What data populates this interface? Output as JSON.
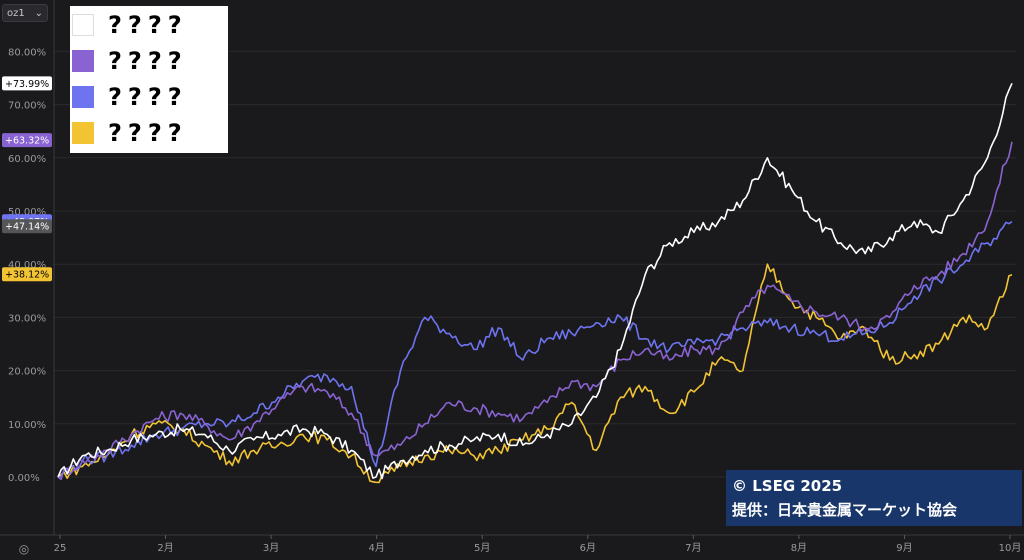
{
  "selector": {
    "value": "oz1",
    "chevron_icon": "chevron-down-icon"
  },
  "settings_icon": "gear-icon",
  "legend": {
    "items": [
      {
        "label": "????",
        "color": "#ffffff"
      },
      {
        "label": "????",
        "color": "#8a63d2"
      },
      {
        "label": "????",
        "color": "#6e73f0"
      },
      {
        "label": "????",
        "color": "#f2c434"
      }
    ]
  },
  "credit": {
    "line1": "© LSEG 2025",
    "line2": "提供：日本貴金属マーケット協会"
  },
  "chart_data": {
    "type": "line",
    "title": "",
    "xlabel": "",
    "ylabel": "",
    "ylim": [
      -10,
      90
    ],
    "y_ticks": [
      0,
      10,
      20,
      30,
      40,
      50,
      60,
      70,
      80
    ],
    "y_tick_labels": [
      "0.00%",
      "10.00%",
      "20.00%",
      "30.00%",
      "40.00%",
      "50.00%",
      "60.00%",
      "70.00%",
      "80.00%"
    ],
    "x_ticks": [
      "25",
      "2月",
      "3月",
      "4月",
      "5月",
      "6月",
      "7月",
      "8月",
      "9月",
      "10月"
    ],
    "grid": true,
    "legend_position": "top-left",
    "x_weeks": [
      0,
      1,
      2,
      3,
      4,
      5,
      6,
      7,
      8,
      9,
      10,
      11,
      12,
      13,
      14,
      15,
      16,
      17,
      18,
      19,
      20,
      21,
      22,
      23,
      24,
      25,
      26,
      27,
      28,
      29,
      30,
      31,
      32,
      33,
      34,
      35,
      36,
      37,
      38,
      39
    ],
    "last_value_tags": [
      {
        "label": "+73.99%",
        "value": 73.99,
        "color": "#ffffff",
        "text_color": "#000000"
      },
      {
        "label": "+63.32%",
        "value": 63.32,
        "color": "#8a63d2",
        "text_color": "#ffffff"
      },
      {
        "label": "+48.07%",
        "value": 48.07,
        "color": "#6e73f0",
        "text_color": "#ffffff"
      },
      {
        "label": "+47.14%",
        "value": 47.14,
        "color": "#555558",
        "text_color": "#ffffff"
      },
      {
        "label": "+38.12%",
        "value": 38.12,
        "color": "#f2c434",
        "text_color": "#000000"
      }
    ],
    "series": [
      {
        "color": "#ffffff",
        "values": [
          0,
          4,
          5,
          7,
          8,
          9,
          8,
          5,
          7,
          8,
          9,
          8,
          5,
          0,
          3,
          5,
          6,
          7,
          8,
          6,
          8,
          10,
          15,
          24,
          38,
          44,
          46,
          48,
          52,
          60,
          54,
          48,
          44,
          42,
          45,
          48,
          46,
          52,
          60,
          74
        ]
      },
      {
        "color": "#8a63d2",
        "values": [
          0,
          3,
          5,
          8,
          11,
          12,
          10,
          7,
          10,
          14,
          17,
          16,
          12,
          4,
          6,
          10,
          14,
          13,
          12,
          11,
          14,
          18,
          17,
          22,
          24,
          22,
          24,
          24,
          31,
          36,
          33,
          31,
          30,
          28,
          30,
          36,
          38,
          42,
          48,
          63
        ]
      },
      {
        "color": "#6e73f0",
        "values": [
          0,
          3,
          4,
          6,
          8,
          9,
          10,
          10,
          12,
          15,
          18,
          19,
          17,
          2,
          20,
          30,
          27,
          24,
          28,
          22,
          26,
          27,
          29,
          30,
          26,
          24,
          25,
          26,
          28,
          29,
          28,
          27,
          26,
          27,
          29,
          34,
          37,
          40,
          44,
          48
        ]
      },
      {
        "color": "#f2c434",
        "values": [
          0,
          2,
          4,
          8,
          10,
          9,
          6,
          3,
          5,
          6,
          8,
          7,
          4,
          -1,
          2,
          4,
          5,
          4,
          5,
          7,
          9,
          14,
          5,
          15,
          17,
          12,
          16,
          22,
          20,
          40,
          33,
          30,
          26,
          28,
          22,
          23,
          25,
          30,
          28,
          38
        ]
      }
    ]
  }
}
